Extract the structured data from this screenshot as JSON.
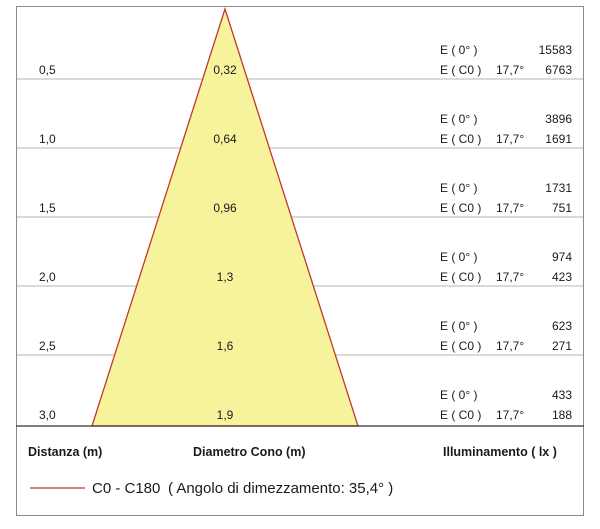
{
  "headers": {
    "distance": "Distanza (m)",
    "diameter": "Diametro Cono (m)",
    "illuminance": "Illuminamento ( lx )"
  },
  "legend": {
    "color": "#c0392b",
    "label": "C0 - C180",
    "note": "( Angolo di dimezzamento: 35,4° )"
  },
  "cone": {
    "fill": "#f7f39c",
    "stroke": "#c0392b"
  },
  "rows": [
    {
      "distance": "0,5",
      "diameter": "0,32",
      "e0_label": "E ( 0° )",
      "e0_value": "15583",
      "ec0_label": "E ( C0 )",
      "ec0_angle": "17,7°",
      "ec0_value": "6763"
    },
    {
      "distance": "1,0",
      "diameter": "0,64",
      "e0_label": "E ( 0° )",
      "e0_value": "3896",
      "ec0_label": "E ( C0 )",
      "ec0_angle": "17,7°",
      "ec0_value": "1691"
    },
    {
      "distance": "1,5",
      "diameter": "0,96",
      "e0_label": "E ( 0° )",
      "e0_value": "1731",
      "ec0_label": "E ( C0 )",
      "ec0_angle": "17,7°",
      "ec0_value": "751"
    },
    {
      "distance": "2,0",
      "diameter": "1,3",
      "e0_label": "E ( 0° )",
      "e0_value": "974",
      "ec0_label": "E ( C0 )",
      "ec0_angle": "17,7°",
      "ec0_value": "423"
    },
    {
      "distance": "2,5",
      "diameter": "1,6",
      "e0_label": "E ( 0° )",
      "e0_value": "623",
      "ec0_label": "E ( C0 )",
      "ec0_angle": "17,7°",
      "ec0_value": "271"
    },
    {
      "distance": "3,0",
      "diameter": "1,9",
      "e0_label": "E ( 0° )",
      "e0_value": "433",
      "ec0_label": "E ( C0 )",
      "ec0_angle": "17,7°",
      "ec0_value": "188"
    }
  ]
}
